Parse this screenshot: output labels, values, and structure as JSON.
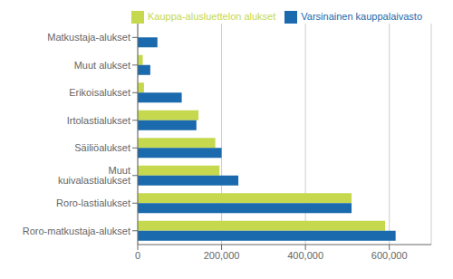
{
  "chart_data": {
    "type": "bar",
    "orientation": "horizontal",
    "categories": [
      "Roro-matkustaja-alukset",
      "Roro-lastialukset",
      "Muut kuivalastialukset",
      "Säiliöalukset",
      "Irtolastialukset",
      "Erikoisalukset",
      "Muut alukset",
      "Matkustaja-alukset"
    ],
    "series": [
      {
        "name": "Kauppa-alusluettelon alukset",
        "color": "#c5d84e",
        "values": [
          590000,
          510000,
          195000,
          185000,
          145000,
          15000,
          12000,
          0
        ]
      },
      {
        "name": "Varsinainen kauppalaivasto",
        "color": "#1a6aad",
        "values": [
          615000,
          510000,
          240000,
          200000,
          140000,
          105000,
          30000,
          47000
        ]
      }
    ],
    "xlim": [
      0,
      700000
    ],
    "xticks": [
      0,
      {
        "value": 200000,
        "label": "200,000"
      },
      {
        "value": 400000,
        "label": "400,000"
      },
      {
        "value": 600000,
        "label": "600,000"
      }
    ],
    "grid": true,
    "legend": "upper right"
  }
}
